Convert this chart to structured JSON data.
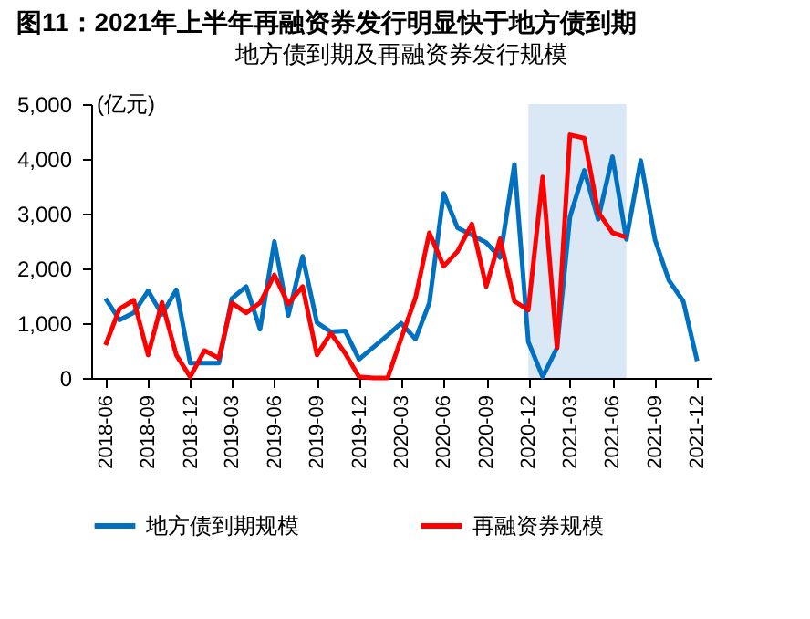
{
  "chart_data": {
    "type": "line",
    "title": "图11：2021年上半年再融资券发行明显快于地方债到期",
    "subtitle": "地方债到期及再融资券发行规模",
    "ylabel": "(亿元)",
    "x": [
      "2018-06",
      "2018-07",
      "2018-08",
      "2018-09",
      "2018-10",
      "2018-11",
      "2018-12",
      "2019-01",
      "2019-02",
      "2019-03",
      "2019-04",
      "2019-05",
      "2019-06",
      "2019-07",
      "2019-08",
      "2019-09",
      "2019-10",
      "2019-11",
      "2019-12",
      "2020-01",
      "2020-02",
      "2020-03",
      "2020-04",
      "2020-05",
      "2020-06",
      "2020-07",
      "2020-08",
      "2020-09",
      "2020-10",
      "2020-11",
      "2020-12",
      "2021-01",
      "2021-02",
      "2021-03",
      "2021-04",
      "2021-05",
      "2021-06",
      "2021-07",
      "2021-08",
      "2021-09",
      "2021-10",
      "2021-11",
      "2021-12"
    ],
    "series": [
      {
        "name": "地方债到期规模",
        "color": "#0070c0",
        "values": [
          1450,
          1060,
          1190,
          1590,
          1160,
          1610,
          270,
          270,
          270,
          1450,
          1670,
          890,
          2490,
          1140,
          2220,
          1010,
          840,
          860,
          340,
          560,
          780,
          1000,
          710,
          1370,
          3370,
          2740,
          2610,
          2470,
          2200,
          3900,
          660,
          20,
          550,
          2940,
          3790,
          2900,
          4040,
          2530,
          3970,
          2520,
          1780,
          1400,
          310
        ]
      },
      {
        "name": "再融资券规模",
        "color": "#ff0000",
        "values": [
          600,
          1260,
          1420,
          420,
          1380,
          420,
          20,
          500,
          360,
          1370,
          1190,
          1370,
          1880,
          1350,
          1670,
          420,
          820,
          450,
          20,
          0,
          0,
          720,
          1460,
          2650,
          2040,
          2310,
          2810,
          1670,
          2540,
          1400,
          1240,
          3670,
          550,
          4440,
          4380,
          3030,
          2650,
          2570,
          null,
          null,
          null,
          null,
          null
        ]
      }
    ],
    "xlim": [
      "2018-05",
      "2022-01"
    ],
    "xticks": [
      {
        "value": "2018-06",
        "label": "2018-06"
      },
      {
        "value": "2018-09",
        "label": "2018-09"
      },
      {
        "value": "2018-12",
        "label": "2018-12"
      },
      {
        "value": "2019-03",
        "label": "2019-03"
      },
      {
        "value": "2019-06",
        "label": "2019-06"
      },
      {
        "value": "2019-09",
        "label": "2019-09"
      },
      {
        "value": "2019-12",
        "label": "2019-12"
      },
      {
        "value": "2020-03",
        "label": "2020-03"
      },
      {
        "value": "2020-06",
        "label": "2020-06"
      },
      {
        "value": "2020-09",
        "label": "2020-09"
      },
      {
        "value": "2020-12",
        "label": "2020-12"
      },
      {
        "value": "2021-03",
        "label": "2021-03"
      },
      {
        "value": "2021-06",
        "label": "2021-06"
      },
      {
        "value": "2021-09",
        "label": "2021-09"
      },
      {
        "value": "2021-12",
        "label": "2021-12"
      }
    ],
    "ylim": [
      0,
      5000
    ],
    "yticks": [
      {
        "value": 0,
        "label": "0"
      },
      {
        "value": 1000,
        "label": "1,000"
      },
      {
        "value": 2000,
        "label": "2,000"
      },
      {
        "value": 3000,
        "label": "3,000"
      },
      {
        "value": 4000,
        "label": "4,000"
      },
      {
        "value": 5000,
        "label": "5,000"
      }
    ],
    "bands": [
      {
        "axis": "x",
        "from": "2020-12",
        "to": "2021-07",
        "color": "#dae8f5"
      }
    ],
    "legend": "bottom",
    "grid": false,
    "marker": "none",
    "line_style": "solid"
  }
}
